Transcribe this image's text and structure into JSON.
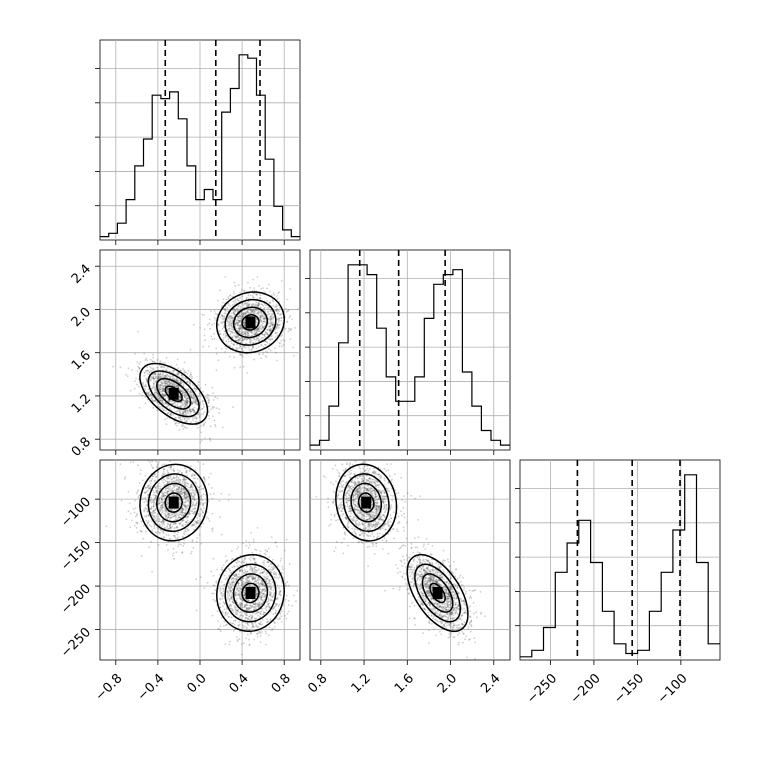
{
  "chart_data": {
    "type": "corner",
    "grid": true,
    "params": [
      {
        "range": [
          -0.95,
          0.95
        ],
        "ticks": [
          -0.8,
          -0.4,
          0.0,
          0.4,
          0.8
        ],
        "tick_labels": [
          "−0.8",
          "−0.4",
          "0.0",
          "0.4",
          "0.8"
        ],
        "hist_counts": [
          1,
          2,
          5,
          12,
          22,
          30,
          43,
          42,
          44,
          36,
          22,
          12,
          15,
          12,
          38,
          45,
          55,
          54,
          43,
          24,
          10,
          3,
          1
        ],
        "quantiles": [
          -0.33,
          0.15,
          0.57
        ]
      },
      {
        "range": [
          0.7,
          2.55
        ],
        "ticks": [
          0.8,
          1.2,
          1.6,
          2.0,
          2.4
        ],
        "tick_labels": [
          "0.8",
          "1.2",
          "1.6",
          "2.0",
          "2.4"
        ],
        "hist_counts": [
          1,
          2,
          9,
          22,
          38,
          38,
          36,
          25,
          15,
          10,
          10,
          15,
          27,
          34,
          36,
          37,
          16,
          9,
          4,
          2,
          1
        ],
        "quantiles": [
          1.16,
          1.52,
          1.95
        ]
      },
      {
        "range": [
          -285,
          -55
        ],
        "ticks": [
          -250,
          -200,
          -150,
          -100
        ],
        "tick_labels": [
          "−250",
          "−200",
          "−150",
          "−100"
        ],
        "hist_counts": [
          1,
          3,
          10,
          27,
          36,
          43,
          30,
          15,
          5,
          2,
          3,
          15,
          27,
          40,
          57,
          30,
          5
        ],
        "quantiles": [
          -219,
          -156,
          -101
        ]
      }
    ],
    "density": {
      "blob_sigma": [
        0.16,
        0.14,
        22
      ],
      "blobs": [
        {
          "center": [
            -0.25,
            1.22,
            -104
          ],
          "rho01": -0.55,
          "rho02": 0.05,
          "rho12": -0.1
        },
        {
          "center": [
            0.48,
            1.88,
            -208
          ],
          "rho01": 0.1,
          "rho02": 0.05,
          "rho12": -0.55
        }
      ],
      "levels_sigma": [
        0.5,
        1.0,
        1.5,
        2.0
      ]
    }
  }
}
